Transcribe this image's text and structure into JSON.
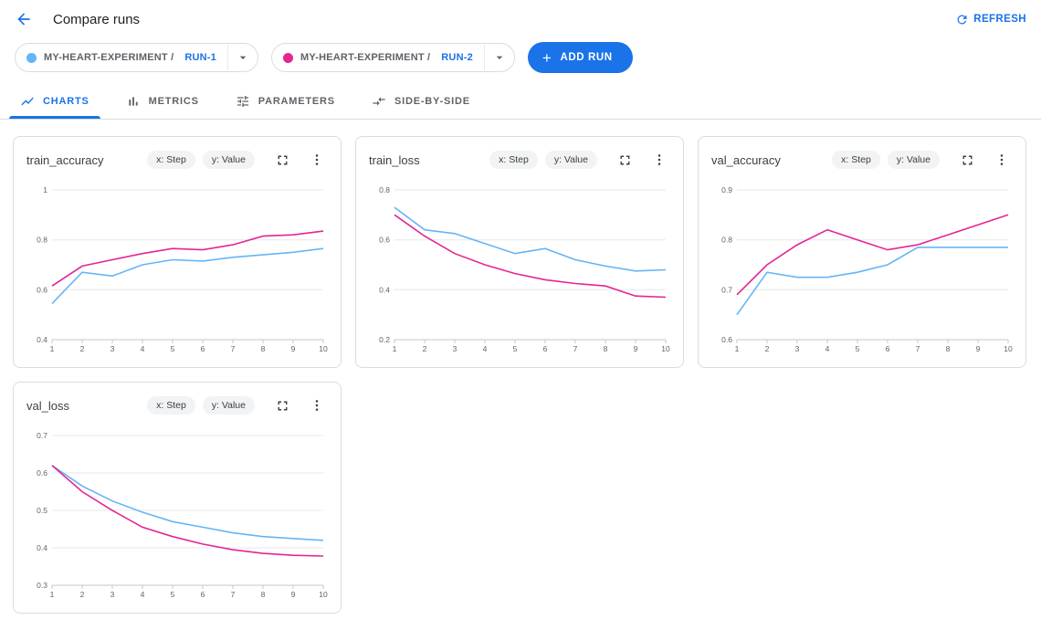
{
  "header": {
    "title": "Compare runs",
    "refresh_label": "REFRESH"
  },
  "runs": [
    {
      "experiment": "MY-HEART-EXPERIMENT /",
      "name": "RUN-1",
      "color": "#64b5f6"
    },
    {
      "experiment": "MY-HEART-EXPERIMENT /",
      "name": "RUN-2",
      "color": "#e52592"
    }
  ],
  "add_run_label": "ADD RUN",
  "tabs": [
    {
      "label": "CHARTS",
      "active": true
    },
    {
      "label": "METRICS",
      "active": false
    },
    {
      "label": "PARAMETERS",
      "active": false
    },
    {
      "label": "SIDE-BY-SIDE",
      "active": false
    }
  ],
  "chart_chips": {
    "x": "x: Step",
    "y": "y: Value"
  },
  "colors": {
    "accent": "#1a73e8",
    "run1_line": "#64b5f6",
    "run2_line": "#e52592"
  },
  "icons": {
    "back": "arrow-left",
    "refresh": "circular-arrow",
    "add": "+",
    "dropdown": "caret-down",
    "charts_tab": "line-chart",
    "metrics_tab": "bar-chart",
    "parameters_tab": "tune-sliders",
    "side_by_side_tab": "compare-arrows",
    "fullscreen": "expand-corners",
    "menu": "vertical-ellipsis"
  },
  "chart_data": [
    {
      "type": "line",
      "title": "train_accuracy",
      "xlabel": "Step",
      "ylabel": "Value",
      "x": [
        1,
        2,
        3,
        4,
        5,
        6,
        7,
        8,
        9,
        10
      ],
      "ylim": [
        0.4,
        1.0
      ],
      "yticks": [
        0.4,
        0.6,
        0.8,
        1
      ],
      "grid": true,
      "legend": "none",
      "series": [
        {
          "name": "RUN-1",
          "color": "#64b5f6",
          "values": [
            0.545,
            0.67,
            0.655,
            0.7,
            0.72,
            0.715,
            0.73,
            0.74,
            0.75,
            0.765
          ]
        },
        {
          "name": "RUN-2",
          "color": "#e52592",
          "values": [
            0.615,
            0.695,
            0.72,
            0.745,
            0.765,
            0.76,
            0.78,
            0.815,
            0.82,
            0.835
          ]
        }
      ]
    },
    {
      "type": "line",
      "title": "train_loss",
      "xlabel": "Step",
      "ylabel": "Value",
      "x": [
        1,
        2,
        3,
        4,
        5,
        6,
        7,
        8,
        9,
        10
      ],
      "ylim": [
        0.2,
        0.8
      ],
      "yticks": [
        0.2,
        0.4,
        0.6,
        0.8
      ],
      "grid": true,
      "legend": "none",
      "series": [
        {
          "name": "RUN-1",
          "color": "#64b5f6",
          "values": [
            0.73,
            0.64,
            0.625,
            0.585,
            0.545,
            0.565,
            0.52,
            0.495,
            0.475,
            0.48
          ]
        },
        {
          "name": "RUN-2",
          "color": "#e52592",
          "values": [
            0.7,
            0.615,
            0.545,
            0.5,
            0.465,
            0.44,
            0.425,
            0.415,
            0.375,
            0.37
          ]
        }
      ]
    },
    {
      "type": "line",
      "title": "val_accuracy",
      "xlabel": "Step",
      "ylabel": "Value",
      "x": [
        1,
        2,
        3,
        4,
        5,
        6,
        7,
        8,
        9,
        10
      ],
      "ylim": [
        0.6,
        0.9
      ],
      "yticks": [
        0.6,
        0.7,
        0.8,
        0.9
      ],
      "grid": true,
      "legend": "none",
      "series": [
        {
          "name": "RUN-1",
          "color": "#64b5f6",
          "values": [
            0.65,
            0.735,
            0.725,
            0.725,
            0.735,
            0.75,
            0.785,
            0.785,
            0.785,
            0.785
          ]
        },
        {
          "name": "RUN-2",
          "color": "#e52592",
          "values": [
            0.69,
            0.75,
            0.79,
            0.82,
            0.8,
            0.78,
            0.79,
            0.81,
            0.83,
            0.85
          ]
        }
      ]
    },
    {
      "type": "line",
      "title": "val_loss",
      "xlabel": "Step",
      "ylabel": "Value",
      "x": [
        1,
        2,
        3,
        4,
        5,
        6,
        7,
        8,
        9,
        10
      ],
      "ylim": [
        0.3,
        0.7
      ],
      "yticks": [
        0.3,
        0.4,
        0.5,
        0.6,
        0.7
      ],
      "grid": true,
      "legend": "none",
      "series": [
        {
          "name": "RUN-1",
          "color": "#64b5f6",
          "values": [
            0.62,
            0.565,
            0.525,
            0.495,
            0.47,
            0.455,
            0.44,
            0.43,
            0.425,
            0.42
          ]
        },
        {
          "name": "RUN-2",
          "color": "#e52592",
          "values": [
            0.62,
            0.55,
            0.5,
            0.455,
            0.43,
            0.41,
            0.395,
            0.385,
            0.38,
            0.378
          ]
        }
      ]
    }
  ]
}
